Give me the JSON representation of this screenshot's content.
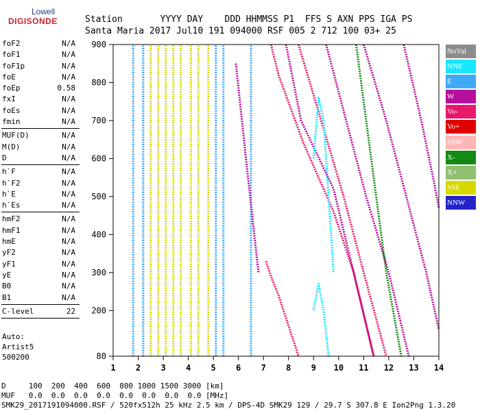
{
  "logo": {
    "line1": "Lowell",
    "line2": "DIGISONDE"
  },
  "header": {
    "labels": "Station       YYYY DAY    DDD HHMMSS P1  FFS S AXN PPS IGA PS",
    "values": "Santa Maria 2017 Jul10 191 094000 RSF 005 2 712 100 03+ 25"
  },
  "params": {
    "group1": [
      {
        "name": "foF2",
        "value": "N/A"
      },
      {
        "name": "foF1",
        "value": "N/A"
      },
      {
        "name": "foF1p",
        "value": "N/A"
      },
      {
        "name": "foE",
        "value": "N/A"
      },
      {
        "name": "foEp",
        "value": "0.58"
      },
      {
        "name": "fxI",
        "value": "N/A"
      },
      {
        "name": "foEs",
        "value": "N/A"
      },
      {
        "name": "fmin",
        "value": "N/A"
      }
    ],
    "group2": [
      {
        "name": "MUF(D)",
        "value": "N/A"
      },
      {
        "name": "M(D)",
        "value": "N/A"
      },
      {
        "name": "D",
        "value": "N/A"
      }
    ],
    "group3": [
      {
        "name": "h`F",
        "value": "N/A"
      },
      {
        "name": "h`F2",
        "value": "N/A"
      },
      {
        "name": "h`E",
        "value": "N/A"
      },
      {
        "name": "h`Es",
        "value": "N/A"
      }
    ],
    "group4": [
      {
        "name": "hmF2",
        "value": "N/A"
      },
      {
        "name": "hmF1",
        "value": "N/A"
      },
      {
        "name": "hmE",
        "value": "N/A"
      },
      {
        "name": "yF2",
        "value": "N/A"
      },
      {
        "name": "yF1",
        "value": "N/A"
      },
      {
        "name": "yE",
        "value": "N/A"
      },
      {
        "name": "B0",
        "value": "N/A"
      },
      {
        "name": "B1",
        "value": "N/A"
      }
    ],
    "group5": [
      {
        "name": "C-level",
        "value": "22"
      }
    ]
  },
  "auto": {
    "line1": "Auto:",
    "line2": "Artist5",
    "line3": "500200"
  },
  "legend": [
    {
      "label": "NoVal",
      "color": "#8c8c8c"
    },
    {
      "label": "NNE",
      "color": "#19e6ff"
    },
    {
      "label": "E",
      "color": "#3fa9f5"
    },
    {
      "label": "W",
      "color": "#b5109b"
    },
    {
      "label": "Vo-",
      "color": "#e8186b"
    },
    {
      "label": "Vo+",
      "color": "#e00000"
    },
    {
      "label": "SSW",
      "color": "#ffb6b6"
    },
    {
      "label": "X-",
      "color": "#138a13"
    },
    {
      "label": "X+",
      "color": "#8fbf6f"
    },
    {
      "label": "SSE",
      "color": "#d7d700"
    },
    {
      "label": "NNW",
      "color": "#2323c8"
    }
  ],
  "bottom": {
    "d_line": "D     100  200  400  600  800 1000 1500 3000 [km]",
    "muf_line": "MUF   0.0  0.0  0.0  0.0  0.0  0.0  0.0  0.0 [MHz]",
    "status_line": "SMK29_2017191094000.RSF / 520fx512h 25 kHz 2.5 km / DPS-4D SMK29 129 / 29.7 S 307.8 E Ion2Png 1.3.20"
  },
  "chart_data": {
    "type": "scatter",
    "title": "",
    "xlabel": "",
    "ylabel": "",
    "xlim": [
      1,
      14
    ],
    "ylim": [
      80,
      900
    ],
    "x_ticks": [
      1,
      2,
      3,
      4,
      5,
      6,
      7,
      8,
      9,
      10,
      11,
      12,
      13,
      14
    ],
    "y_ticks": [
      80,
      200,
      300,
      400,
      500,
      600,
      700,
      800,
      900
    ],
    "series": [
      {
        "name": "SSE",
        "color": "#d7d700",
        "traces": [
          {
            "x": [
              2.5,
              2.5
            ],
            "y": [
              80,
              900
            ]
          },
          {
            "x": [
              2.8,
              2.8
            ],
            "y": [
              80,
              900
            ]
          },
          {
            "x": [
              3.1,
              3.1
            ],
            "y": [
              80,
              900
            ]
          },
          {
            "x": [
              3.4,
              3.4
            ],
            "y": [
              80,
              900
            ]
          },
          {
            "x": [
              3.7,
              3.7
            ],
            "y": [
              80,
              900
            ]
          },
          {
            "x": [
              4.1,
              4.1
            ],
            "y": [
              80,
              900
            ]
          },
          {
            "x": [
              4.4,
              4.4
            ],
            "y": [
              80,
              900
            ]
          },
          {
            "x": [
              4.8,
              4.8
            ],
            "y": [
              80,
              900
            ]
          }
        ]
      },
      {
        "name": "E",
        "color": "#3fa9f5",
        "traces": [
          {
            "x": [
              1.8,
              1.8
            ],
            "y": [
              80,
              900
            ]
          },
          {
            "x": [
              2.2,
              2.2
            ],
            "y": [
              80,
              900
            ]
          },
          {
            "x": [
              5.1,
              5.1
            ],
            "y": [
              80,
              900
            ]
          },
          {
            "x": [
              5.4,
              5.4
            ],
            "y": [
              80,
              900
            ]
          },
          {
            "x": [
              6.5,
              6.5
            ],
            "y": [
              80,
              900
            ]
          }
        ]
      },
      {
        "name": "W",
        "color": "#b5109b",
        "traces": [
          {
            "x": [
              7.9,
              8.5,
              9.8,
              10.6,
              11.4
            ],
            "y": [
              900,
              700,
              520,
              300,
              80
            ]
          },
          {
            "x": [
              9.5,
              10.3,
              11.1,
              12.0,
              12.8
            ],
            "y": [
              900,
              700,
              500,
              300,
              80
            ]
          },
          {
            "x": [
              11.0,
              11.9,
              12.7,
              13.5,
              14.0
            ],
            "y": [
              900,
              700,
              500,
              300,
              150
            ]
          },
          {
            "x": [
              12.6,
              13.3,
              13.8,
              14.0
            ],
            "y": [
              900,
              700,
              540,
              470
            ]
          },
          {
            "x": [
              5.9,
              6.3,
              6.8
            ],
            "y": [
              850,
              600,
              300
            ]
          }
        ]
      },
      {
        "name": "Vo-",
        "color": "#e8186b",
        "traces": [
          {
            "x": [
              7.3,
              7.6,
              8.6,
              9.8,
              10.6,
              11.4
            ],
            "y": [
              900,
              820,
              640,
              460,
              300,
              80
            ]
          },
          {
            "x": [
              8.4,
              9.3,
              10.2,
              11.0,
              11.9
            ],
            "y": [
              900,
              700,
              500,
              300,
              80
            ]
          },
          {
            "x": [
              7.1,
              7.3,
              7.6,
              8.4
            ],
            "y": [
              330,
              290,
              240,
              80
            ]
          }
        ]
      },
      {
        "name": "NNE",
        "color": "#19e6ff",
        "traces": [
          {
            "x": [
              9.0,
              9.2,
              9.4,
              9.6,
              9.8
            ],
            "y": [
              600,
              760,
              700,
              500,
              300
            ]
          },
          {
            "x": [
              9.0,
              9.2,
              9.4,
              9.6
            ],
            "y": [
              200,
              270,
              200,
              80
            ]
          }
        ]
      },
      {
        "name": "X-",
        "color": "#138a13",
        "traces": [
          {
            "x": [
              10.7,
              11.3,
              11.9,
              12.5
            ],
            "y": [
              900,
              600,
              300,
              80
            ]
          }
        ]
      }
    ],
    "legend_position": "right"
  }
}
